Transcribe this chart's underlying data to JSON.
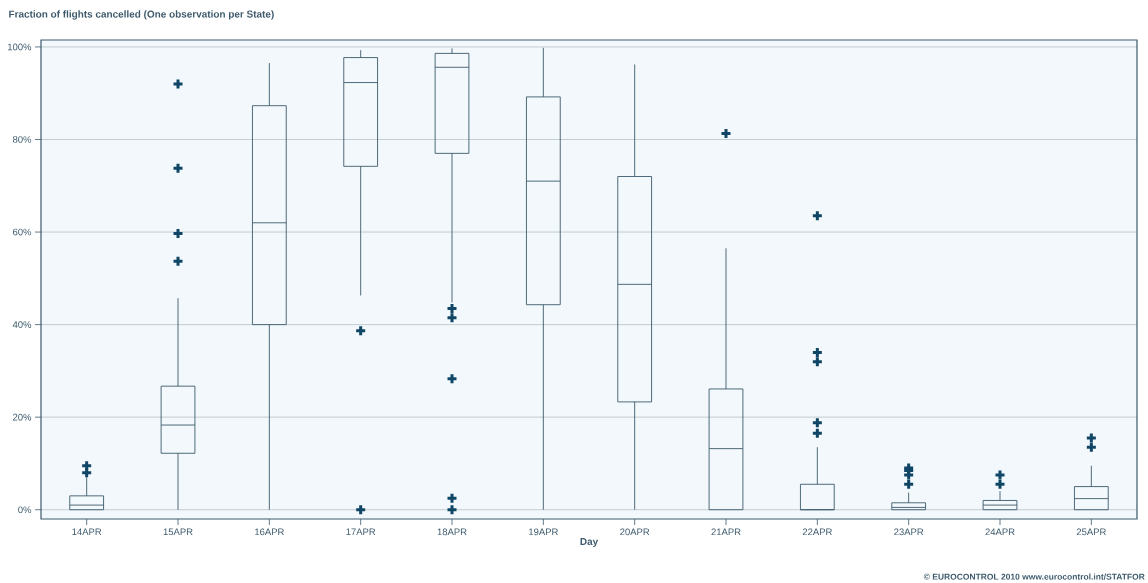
{
  "chart_data": {
    "type": "box",
    "title": "Fraction of flights cancelled (One observation per State)",
    "xlabel": "Day",
    "categories": [
      "14APR",
      "15APR",
      "16APR",
      "17APR",
      "18APR",
      "19APR",
      "20APR",
      "21APR",
      "22APR",
      "23APR",
      "24APR",
      "25APR"
    ],
    "boxes": [
      {
        "low": 0,
        "q1": 0,
        "median": 1,
        "q3": 3,
        "high": 7,
        "outliers": [
          8,
          9.5
        ]
      },
      {
        "low": 0,
        "q1": 12.2,
        "median": 18.3,
        "q3": 26.7,
        "high": 45.7,
        "outliers": [
          53.7,
          59.7,
          73.8,
          92
        ]
      },
      {
        "low": 0,
        "q1": 40,
        "median": 62,
        "q3": 87.3,
        "high": 96.5
      },
      {
        "low": 46.3,
        "q1": 74.2,
        "median": 92.3,
        "q3": 97.7,
        "high": 99.3,
        "outliers": [
          0,
          38.7
        ]
      },
      {
        "low": 44.8,
        "q1": 77,
        "median": 95.6,
        "q3": 98.6,
        "high": 99.7,
        "outliers": [
          0,
          2.5,
          28.3,
          41.5,
          43.5
        ]
      },
      {
        "low": 0,
        "q1": 44.3,
        "median": 71,
        "q3": 89.2,
        "high": 99.8
      },
      {
        "low": 0,
        "q1": 23.3,
        "median": 48.7,
        "q3": 72,
        "high": 96.2
      },
      {
        "low": 0,
        "q1": 0,
        "median": 13.2,
        "q3": 26.1,
        "high": 56.5,
        "outliers": [
          81.3
        ]
      },
      {
        "low": 0,
        "q1": 0,
        "median": 0,
        "q3": 5.5,
        "high": 13.5,
        "outliers": [
          16.5,
          18.8,
          32,
          34,
          63.5
        ]
      },
      {
        "low": 0,
        "q1": 0,
        "median": 0.5,
        "q3": 1.5,
        "high": 3.7,
        "outliers": [
          5.5,
          7.5,
          8.5,
          9
        ]
      },
      {
        "low": 0,
        "q1": 0,
        "median": 1,
        "q3": 2,
        "high": 4,
        "outliers": [
          5.5,
          7.5
        ]
      },
      {
        "low": 0,
        "q1": 0,
        "median": 2.4,
        "q3": 5,
        "high": 9.5,
        "outliers": [
          13.5,
          15.5
        ]
      }
    ],
    "color": "#3d5a6c",
    "ylim": [
      -2,
      101.5
    ],
    "yticks": [
      {
        "value": 0,
        "label": "0%"
      },
      {
        "value": 20,
        "label": "20%"
      },
      {
        "value": 40,
        "label": "40%"
      },
      {
        "value": 60,
        "label": "60%"
      },
      {
        "value": 80,
        "label": "80%"
      },
      {
        "value": 100,
        "label": "100%"
      }
    ],
    "grid": "y",
    "annotations": [
      "© EUROCONTROL 2010  www.eurocontrol.int/STATFOR"
    ]
  }
}
